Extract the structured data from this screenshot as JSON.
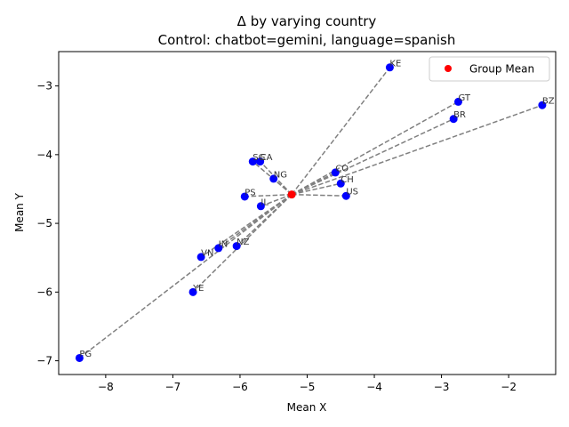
{
  "chart_data": {
    "type": "scatter",
    "title": "Δ by varying country",
    "subtitle": "Control: chatbot=gemini, language=spanish",
    "xlabel": "Mean X",
    "ylabel": "Mean Y",
    "xlim": [
      -8.7,
      -1.3
    ],
    "ylim": [
      -7.2,
      -2.5
    ],
    "xticks": [
      -8,
      -7,
      -6,
      -5,
      -4,
      -3,
      -2
    ],
    "yticks": [
      -7,
      -6,
      -5,
      -4,
      -3
    ],
    "grid": false,
    "legend": {
      "placement": "top-right",
      "entries": [
        "Group Mean"
      ]
    },
    "colors": {
      "points": "#0000ff",
      "group_mean": "#ff0000",
      "lines": "#808080"
    },
    "group_mean": {
      "x": -5.23,
      "y": -4.58
    },
    "points": [
      {
        "label": "KE",
        "x": -3.77,
        "y": -2.73
      },
      {
        "label": "GT",
        "x": -2.75,
        "y": -3.23
      },
      {
        "label": "BZ",
        "x": -1.5,
        "y": -3.28
      },
      {
        "label": "BR",
        "x": -2.82,
        "y": -3.48
      },
      {
        "label": "SG",
        "x": -5.81,
        "y": -4.1
      },
      {
        "label": "CA",
        "x": -5.7,
        "y": -4.1
      },
      {
        "label": "CO",
        "x": -4.58,
        "y": -4.26
      },
      {
        "label": "NG",
        "x": -5.5,
        "y": -4.35
      },
      {
        "label": "CH",
        "x": -4.5,
        "y": -4.42
      },
      {
        "label": "PS",
        "x": -5.93,
        "y": -4.61
      },
      {
        "label": "US",
        "x": -4.42,
        "y": -4.6
      },
      {
        "label": "IL",
        "x": -5.69,
        "y": -4.75
      },
      {
        "label": "IN",
        "x": -6.32,
        "y": -5.36
      },
      {
        "label": "NZ",
        "x": -6.05,
        "y": -5.33
      },
      {
        "label": "VN",
        "x": -6.58,
        "y": -5.49
      },
      {
        "label": "YE",
        "x": -6.7,
        "y": -6.0
      },
      {
        "label": "PG",
        "x": -8.39,
        "y": -6.96
      }
    ]
  }
}
